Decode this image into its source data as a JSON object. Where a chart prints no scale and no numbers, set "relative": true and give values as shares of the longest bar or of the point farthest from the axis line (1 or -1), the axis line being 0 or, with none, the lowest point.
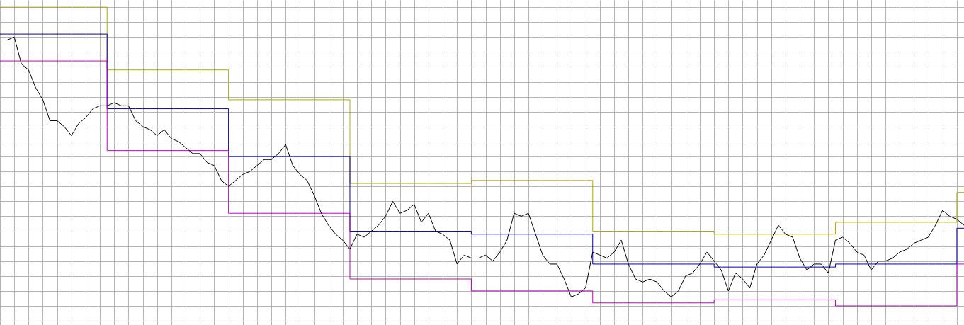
{
  "chart_data": {
    "type": "line",
    "relative": true,
    "grid": true,
    "categories": [
      null,
      null,
      null,
      null,
      null,
      null,
      null,
      null,
      null,
      null,
      null,
      null,
      null,
      null,
      null,
      null,
      null,
      null,
      null,
      null,
      null,
      null,
      null,
      null,
      null,
      null,
      null,
      null,
      null,
      null,
      null,
      null,
      null,
      null,
      null,
      null,
      null,
      null,
      null,
      null,
      null,
      null,
      null,
      null,
      null,
      null,
      null,
      null,
      null,
      null,
      null,
      null,
      null,
      null,
      null,
      null,
      null,
      null,
      null,
      null,
      null,
      null,
      null,
      null,
      null,
      null,
      null,
      null,
      null,
      null,
      null,
      null,
      null,
      null,
      null,
      null,
      null,
      null,
      null,
      null,
      null,
      null,
      null,
      null,
      null,
      null,
      null,
      null,
      null,
      null,
      null,
      null,
      null,
      null,
      null,
      null,
      null,
      null,
      null,
      null,
      null,
      null,
      null,
      null,
      null,
      null,
      null,
      null,
      null,
      null,
      null,
      null,
      null,
      null,
      null,
      null,
      null,
      null,
      null,
      null,
      null,
      null,
      null,
      null,
      null,
      null,
      null,
      null,
      null,
      null,
      null,
      null,
      null,
      null,
      null,
      null
    ],
    "series": [
      {
        "type": "step",
        "color": "#b8a800",
        "values": [
          1,
          1,
          1,
          1,
          1,
          1,
          1,
          1,
          1,
          1,
          1,
          1,
          1,
          1,
          1,
          0.79,
          0.79,
          0.79,
          0.79,
          0.79,
          0.79,
          0.79,
          0.79,
          0.79,
          0.79,
          0.79,
          0.79,
          0.79,
          0.79,
          0.79,
          0.79,
          0.79,
          0.69,
          0.69,
          0.69,
          0.69,
          0.69,
          0.69,
          0.69,
          0.69,
          0.69,
          0.69,
          0.69,
          0.69,
          0.69,
          0.69,
          0.69,
          0.69,
          0.69,
          0.41,
          0.41,
          0.41,
          0.41,
          0.41,
          0.41,
          0.41,
          0.41,
          0.41,
          0.41,
          0.41,
          0.41,
          0.41,
          0.41,
          0.41,
          0.41,
          0.41,
          0.42,
          0.42,
          0.42,
          0.42,
          0.42,
          0.42,
          0.42,
          0.42,
          0.42,
          0.42,
          0.42,
          0.42,
          0.42,
          0.42,
          0.42,
          0.42,
          0.42,
          0.25,
          0.25,
          0.25,
          0.25,
          0.25,
          0.25,
          0.25,
          0.25,
          0.25,
          0.25,
          0.25,
          0.25,
          0.25,
          0.25,
          0.25,
          0.25,
          0.25,
          0.24,
          0.24,
          0.24,
          0.24,
          0.24,
          0.24,
          0.24,
          0.24,
          0.24,
          0.24,
          0.24,
          0.24,
          0.24,
          0.24,
          0.24,
          0.24,
          0.24,
          0.28,
          0.28,
          0.28,
          0.28,
          0.28,
          0.28,
          0.28,
          0.28,
          0.28,
          0.28,
          0.28,
          0.28,
          0.28,
          0.28,
          0.28,
          0.28,
          0.28,
          0.38,
          0.38
        ]
      },
      {
        "type": "step",
        "color": "#0000c0",
        "values": [
          0.91,
          0.91,
          0.91,
          0.91,
          0.91,
          0.91,
          0.91,
          0.91,
          0.91,
          0.91,
          0.91,
          0.91,
          0.91,
          0.91,
          0.91,
          0.66,
          0.66,
          0.66,
          0.66,
          0.66,
          0.66,
          0.66,
          0.66,
          0.66,
          0.66,
          0.66,
          0.66,
          0.66,
          0.66,
          0.66,
          0.66,
          0.66,
          0.5,
          0.5,
          0.5,
          0.5,
          0.5,
          0.5,
          0.5,
          0.5,
          0.5,
          0.5,
          0.5,
          0.5,
          0.5,
          0.5,
          0.5,
          0.5,
          0.5,
          0.25,
          0.25,
          0.25,
          0.25,
          0.25,
          0.25,
          0.25,
          0.25,
          0.25,
          0.25,
          0.25,
          0.25,
          0.25,
          0.25,
          0.25,
          0.25,
          0.25,
          0.24,
          0.24,
          0.24,
          0.24,
          0.24,
          0.24,
          0.24,
          0.24,
          0.24,
          0.24,
          0.24,
          0.24,
          0.24,
          0.24,
          0.24,
          0.24,
          0.24,
          0.14,
          0.14,
          0.14,
          0.14,
          0.14,
          0.14,
          0.14,
          0.14,
          0.14,
          0.14,
          0.14,
          0.14,
          0.14,
          0.14,
          0.14,
          0.14,
          0.14,
          0.13,
          0.13,
          0.13,
          0.13,
          0.13,
          0.13,
          0.13,
          0.13,
          0.13,
          0.13,
          0.13,
          0.13,
          0.13,
          0.13,
          0.13,
          0.13,
          0.13,
          0.14,
          0.14,
          0.14,
          0.14,
          0.14,
          0.14,
          0.14,
          0.14,
          0.14,
          0.14,
          0.14,
          0.14,
          0.14,
          0.14,
          0.14,
          0.14,
          0.14,
          0.26,
          0.26
        ]
      },
      {
        "type": "step",
        "color": "#c000c0",
        "values": [
          0.82,
          0.82,
          0.82,
          0.82,
          0.82,
          0.82,
          0.82,
          0.82,
          0.82,
          0.82,
          0.82,
          0.82,
          0.82,
          0.82,
          0.82,
          0.52,
          0.52,
          0.52,
          0.52,
          0.52,
          0.52,
          0.52,
          0.52,
          0.52,
          0.52,
          0.52,
          0.52,
          0.52,
          0.52,
          0.52,
          0.52,
          0.52,
          0.31,
          0.31,
          0.31,
          0.31,
          0.31,
          0.31,
          0.31,
          0.31,
          0.31,
          0.31,
          0.31,
          0.31,
          0.31,
          0.31,
          0.31,
          0.31,
          0.31,
          0.09,
          0.09,
          0.09,
          0.09,
          0.09,
          0.09,
          0.09,
          0.09,
          0.09,
          0.09,
          0.09,
          0.09,
          0.09,
          0.09,
          0.09,
          0.09,
          0.09,
          0.05,
          0.05,
          0.05,
          0.05,
          0.05,
          0.05,
          0.05,
          0.05,
          0.05,
          0.05,
          0.05,
          0.05,
          0.05,
          0.05,
          0.05,
          0.05,
          0.05,
          0.01,
          0.01,
          0.01,
          0.01,
          0.01,
          0.01,
          0.01,
          0.01,
          0.01,
          0.01,
          0.01,
          0.01,
          0.01,
          0.01,
          0.01,
          0.01,
          0.01,
          0.02,
          0.02,
          0.02,
          0.02,
          0.02,
          0.02,
          0.02,
          0.02,
          0.02,
          0.02,
          0.02,
          0.02,
          0.02,
          0.02,
          0.02,
          0.02,
          0.02,
          0,
          0,
          0,
          0,
          0,
          0,
          0,
          0,
          0,
          0,
          0,
          0,
          0,
          0,
          0,
          0,
          0,
          0.14,
          0.14
        ]
      },
      {
        "type": "line",
        "color": "#000000",
        "values": [
          0.89,
          0.89,
          0.9,
          0.81,
          0.79,
          0.73,
          0.69,
          0.62,
          0.62,
          0.6,
          0.57,
          0.61,
          0.63,
          0.66,
          0.67,
          0.67,
          0.68,
          0.67,
          0.67,
          0.62,
          0.6,
          0.59,
          0.57,
          0.59,
          0.56,
          0.55,
          0.53,
          0.51,
          0.51,
          0.48,
          0.47,
          0.42,
          0.4,
          0.42,
          0.44,
          0.45,
          0.47,
          0.49,
          0.49,
          0.51,
          0.54,
          0.47,
          0.44,
          0.42,
          0.37,
          0.31,
          0.27,
          0.24,
          0.22,
          0.19,
          0.24,
          0.23,
          0.25,
          0.27,
          0.3,
          0.35,
          0.31,
          0.32,
          0.34,
          0.28,
          0.31,
          0.25,
          0.24,
          0.22,
          0.14,
          0.17,
          0.16,
          0.16,
          0.17,
          0.15,
          0.18,
          0.22,
          0.31,
          0.3,
          0.31,
          0.24,
          0.17,
          0.14,
          0.14,
          0.09,
          0.03,
          0.04,
          0.06,
          0.18,
          0.17,
          0.16,
          0.18,
          0.22,
          0.14,
          0.09,
          0.08,
          0.09,
          0.08,
          0.05,
          0.03,
          0.05,
          0.1,
          0.11,
          0.14,
          0.18,
          0.15,
          0.12,
          0.05,
          0.11,
          0.09,
          0.06,
          0.14,
          0.17,
          0.22,
          0.27,
          0.24,
          0.23,
          0.16,
          0.12,
          0.14,
          0.14,
          0.11,
          0.22,
          0.23,
          0.21,
          0.18,
          0.17,
          0.12,
          0.15,
          0.15,
          0.16,
          0.18,
          0.19,
          0.21,
          0.22,
          0.23,
          0.27,
          0.32,
          0.3,
          0.29,
          0.27
        ]
      }
    ]
  }
}
